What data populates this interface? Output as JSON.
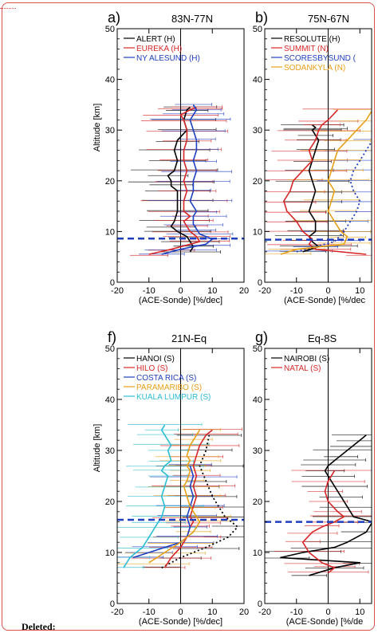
{
  "deleted_label": "Deleted:",
  "chart_data": [
    {
      "type": "line",
      "panel_letter": "a)",
      "title": "83N-77N",
      "xlabel": "(ACE-Sonde) [%/dec]",
      "ylabel": "Altitude [km]",
      "xlim": [
        -20,
        20
      ],
      "ylim": [
        0,
        50
      ],
      "xticks": [
        "-20",
        "-10",
        "0",
        "10",
        "20"
      ],
      "yticks": [
        "0",
        "10",
        "20",
        "30",
        "40",
        "50"
      ],
      "tropopause_km": 8.6,
      "series": [
        {
          "name": "ALERT (H)",
          "color": "#000000",
          "x": [
            3,
            4,
            3,
            2,
            -1,
            -3,
            -2,
            -1,
            -1,
            -1,
            -3,
            -3,
            -4,
            -2,
            -1,
            -2,
            -1,
            2,
            1,
            2,
            3
          ],
          "y": [
            6,
            7,
            8,
            9,
            10,
            11,
            12,
            14,
            16,
            18,
            19,
            20,
            21,
            22,
            24,
            26,
            28,
            30,
            32,
            34,
            34.5
          ]
        },
        {
          "name": "EUREKA (H)",
          "color": "#d62728",
          "x": [
            -10,
            -3,
            6,
            5,
            3,
            2,
            1,
            3,
            1,
            1,
            2,
            1,
            2,
            1,
            1,
            2,
            2,
            1,
            0,
            3,
            5
          ],
          "y": [
            5.5,
            6.5,
            8,
            9,
            10,
            11,
            12,
            13,
            14,
            16,
            18,
            20,
            22,
            24,
            26,
            28,
            30,
            32,
            33,
            34,
            34.5
          ]
        },
        {
          "name": "NY ALESUND (H)",
          "color": "#1f3fbf",
          "x": [
            -6,
            0,
            8,
            10,
            6,
            5,
            4,
            4,
            5,
            3,
            4,
            4,
            5,
            4,
            5,
            5,
            4,
            3,
            4,
            5,
            4
          ],
          "y": [
            5.5,
            6.5,
            7.5,
            8.5,
            9.5,
            10.5,
            11.5,
            13,
            14,
            16,
            18,
            20,
            22,
            24,
            26,
            28,
            30,
            32,
            33,
            34,
            35
          ]
        }
      ]
    },
    {
      "type": "line",
      "panel_letter": "b)",
      "title": "75N-67N",
      "xlabel": "(ACE-Sonde) [%/dec",
      "ylabel": "",
      "xlim": [
        -20,
        20
      ],
      "ylim": [
        0,
        50
      ],
      "xticks": [
        "-20",
        "-10",
        "0",
        "10"
      ],
      "yticks": [
        "0",
        "10",
        "20",
        "30",
        "40",
        "50"
      ],
      "tropopause_km": 8.4,
      "series": [
        {
          "name": "RESOLUTE (H)",
          "color": "#000000",
          "x": [
            -8,
            -3,
            -5,
            -6,
            -4,
            -4,
            -6,
            -5,
            -4,
            -5,
            -6,
            -5,
            -4,
            -3,
            -4,
            -5,
            -4,
            -5
          ],
          "y": [
            6,
            7,
            8,
            9,
            10,
            12,
            14,
            16,
            18,
            20,
            22,
            24,
            26,
            28,
            29,
            30,
            30.5,
            31
          ]
        },
        {
          "name": "SUMMIT (N)",
          "color": "#d62728",
          "x": [
            12,
            -4,
            -6,
            -5,
            -8,
            -10,
            -13,
            -14,
            -12,
            -11,
            -8,
            -5,
            -6,
            -4,
            -3,
            -2,
            0,
            3
          ],
          "y": [
            5.5,
            6.5,
            7.5,
            8.5,
            10,
            12,
            14,
            16,
            18,
            20,
            22,
            24,
            26,
            28,
            30,
            31,
            32,
            34
          ]
        },
        {
          "name": "SCORESBYSUND (",
          "color": "#1f3fbf",
          "dash": true,
          "x": [
            -10,
            -4,
            2,
            5,
            7,
            9,
            10,
            8,
            7,
            8,
            10,
            12,
            14
          ],
          "y": [
            6,
            7,
            8,
            10,
            12,
            14,
            16,
            18,
            20,
            22,
            24,
            26,
            28
          ]
        },
        {
          "name": "SODANKYLA (N)",
          "color": "#e6a017",
          "x": [
            -15,
            -10,
            5,
            6,
            4,
            2,
            0,
            1,
            2,
            0,
            1,
            2,
            3,
            6,
            9,
            12,
            14
          ],
          "y": [
            5.5,
            6.5,
            7.5,
            9,
            10,
            12,
            14,
            16,
            18,
            20,
            22,
            24,
            26,
            28,
            30,
            32,
            34
          ]
        }
      ]
    },
    {
      "type": "line",
      "panel_letter": "f)",
      "title": "21N-Eq",
      "xlabel": "(ACE-Sonde) [%/dec]",
      "ylabel": "Altitude [km]",
      "xlim": [
        -20,
        20
      ],
      "ylim": [
        0,
        50
      ],
      "xticks": [
        "-20",
        "-10",
        "0",
        "10",
        "20"
      ],
      "yticks": [
        "0",
        "10",
        "20",
        "30",
        "40",
        "50"
      ],
      "tropopause_km": 16.4,
      "series": [
        {
          "name": "HANOI (S)",
          "color": "#000000",
          "dash": true,
          "x": [
            -6,
            0,
            8,
            15,
            18,
            14,
            12,
            10,
            8,
            6,
            8,
            9
          ],
          "y": [
            7,
            9,
            11,
            13,
            15,
            17,
            19,
            21,
            24,
            27,
            30,
            33
          ]
        },
        {
          "name": "HILO (S)",
          "color": "#d62728",
          "x": [
            -5,
            -3,
            0,
            2,
            3,
            4,
            3,
            4,
            5,
            4,
            5,
            4,
            5,
            6,
            8,
            10
          ],
          "y": [
            7,
            9,
            11,
            13,
            15,
            16,
            17,
            19,
            21,
            23,
            25,
            27,
            29,
            31,
            33,
            34
          ]
        },
        {
          "name": "COSTA RICA (S)",
          "color": "#1f3fbf",
          "x": [
            -15,
            -10,
            -5,
            0,
            2,
            3,
            2,
            3,
            4,
            3,
            4,
            3
          ],
          "y": [
            9,
            10,
            11,
            12,
            13,
            15,
            17,
            19,
            21,
            23,
            25,
            27
          ]
        },
        {
          "name": "PARAMARIBO (S)",
          "color": "#e6a017",
          "x": [
            -10,
            -5,
            0,
            4,
            6,
            5,
            3,
            2,
            1,
            2,
            3,
            2,
            3,
            2,
            3,
            4,
            6
          ],
          "y": [
            8,
            10,
            12,
            14,
            16,
            17,
            19,
            21,
            23,
            24,
            26,
            27,
            28,
            29,
            31,
            32,
            34
          ]
        },
        {
          "name": "KUALA LUMPUR (S)",
          "color": "#2bbcd4",
          "x": [
            -18,
            -16,
            -12,
            -10,
            -8,
            -7,
            -6,
            -5,
            -6,
            -5,
            -4,
            -6,
            -5,
            -3,
            -4,
            -3,
            -5,
            -6,
            -5
          ],
          "y": [
            7,
            9,
            11,
            13,
            15,
            16,
            17,
            19,
            21,
            23,
            25,
            26,
            27,
            28,
            30,
            31,
            33,
            34,
            35
          ]
        }
      ]
    },
    {
      "type": "line",
      "panel_letter": "g)",
      "title": "Eq-8S",
      "xlabel": "(ACE-Sonde) [%/de",
      "ylabel": "",
      "xlim": [
        -20,
        20
      ],
      "ylim": [
        0,
        50
      ],
      "xticks": [
        "-20",
        "-10",
        "0",
        "10"
      ],
      "yticks": [
        "0",
        "10",
        "20",
        "30",
        "40",
        "50"
      ],
      "tropopause_km": 16,
      "series": [
        {
          "name": "NAIROBI (S)",
          "color": "#000000",
          "x": [
            -6,
            2,
            10,
            -15,
            -8,
            2,
            6,
            12,
            14,
            8,
            6,
            4,
            2,
            0,
            -1,
            0,
            2,
            4,
            6,
            8,
            10,
            12
          ],
          "y": [
            5.5,
            7,
            8,
            9,
            10,
            11,
            12,
            14,
            16,
            17,
            19,
            21,
            23,
            25,
            26,
            27,
            28,
            29,
            30,
            31,
            32,
            33
          ]
        },
        {
          "name": "NATAL (S)",
          "color": "#d62728",
          "x": [
            0,
            2,
            -2,
            -6,
            -8,
            -5,
            -2,
            2,
            5,
            3,
            0,
            -1,
            0,
            2
          ],
          "y": [
            6,
            7,
            8,
            10,
            12,
            14,
            15,
            16,
            17,
            18,
            20,
            22,
            24,
            26
          ]
        }
      ]
    }
  ]
}
